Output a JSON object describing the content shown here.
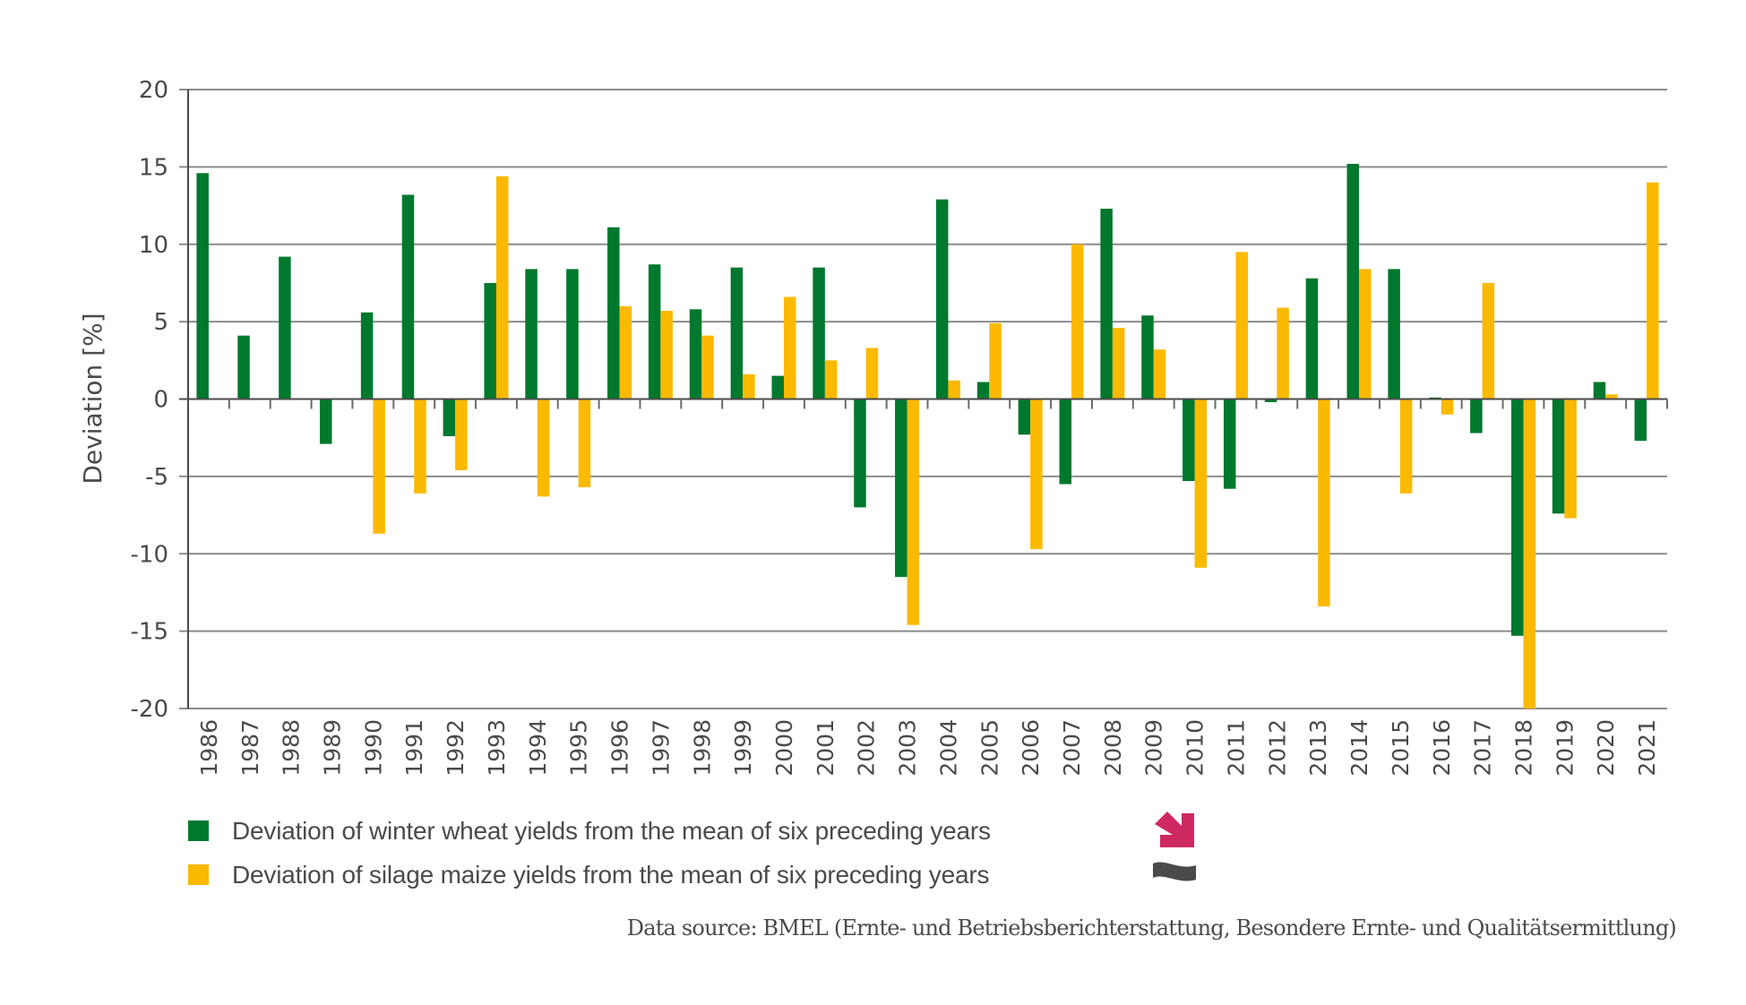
{
  "chart_data": {
    "type": "bar",
    "title": "",
    "xlabel": "",
    "ylabel": "Deviation [%]",
    "ylim": [
      -20,
      20
    ],
    "yticks": [
      20,
      15,
      10,
      5,
      0,
      -5,
      -10,
      -15,
      -20
    ],
    "grid": true,
    "legend_position": "bottom-left",
    "categories": [
      "1986",
      "1987",
      "1988",
      "1989",
      "1990",
      "1991",
      "1992",
      "1993",
      "1994",
      "1995",
      "1996",
      "1997",
      "1998",
      "1999",
      "2000",
      "2001",
      "2002",
      "2003",
      "2004",
      "2005",
      "2006",
      "2007",
      "2008",
      "2009",
      "2010",
      "2011",
      "2012",
      "2013",
      "2014",
      "2015",
      "2016",
      "2017",
      "2018",
      "2019",
      "2020",
      "2021"
    ],
    "series": [
      {
        "name": "Deviation of winter wheat yields from the mean of six preceding years",
        "color": "#00782D",
        "values": [
          14.6,
          4.1,
          9.2,
          -2.9,
          5.6,
          13.2,
          -2.4,
          7.5,
          8.4,
          8.4,
          11.1,
          8.7,
          5.8,
          8.5,
          1.5,
          8.5,
          -7.0,
          -11.5,
          12.9,
          1.1,
          -2.3,
          -5.5,
          12.3,
          5.4,
          -5.3,
          -5.8,
          -0.2,
          7.8,
          15.2,
          8.4,
          0.1,
          -2.2,
          -15.3,
          -7.4,
          1.1,
          -2.7
        ]
      },
      {
        "name": "Deviation of silage maize yields from the mean of six preceding years",
        "color": "#FBB900",
        "values": [
          null,
          null,
          null,
          null,
          -8.7,
          -6.1,
          -4.6,
          14.4,
          -6.3,
          -5.7,
          6.0,
          5.7,
          4.1,
          1.6,
          6.6,
          2.5,
          3.3,
          -14.6,
          1.2,
          4.9,
          -9.7,
          10.0,
          4.6,
          3.2,
          -10.9,
          9.5,
          5.9,
          -13.4,
          8.4,
          -6.1,
          -1.0,
          7.5,
          -20.0,
          -7.7,
          0.3,
          14.0
        ]
      }
    ]
  },
  "legend": {
    "items": [
      {
        "label": "Deviation of winter wheat yields from the mean of six preceding years",
        "color": "#00782D",
        "trend_icon": "arrow-down-right-icon",
        "trend_color": "#CE2862"
      },
      {
        "label": "Deviation of silage maize yields from the mean of six preceding years",
        "color": "#FBB900",
        "trend_icon": "tilde-wave-icon",
        "trend_color": "#4A4A4A"
      }
    ]
  },
  "source": "Data source: BMEL (Ernte- und Betriebsberichterstattung, Besondere Ernte- und Qualitätsermittlung)"
}
